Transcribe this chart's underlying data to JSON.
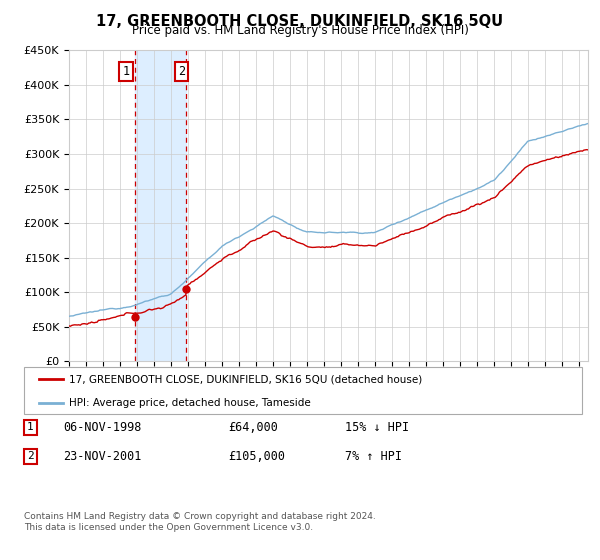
{
  "title": "17, GREENBOOTH CLOSE, DUKINFIELD, SK16 5QU",
  "subtitle": "Price paid vs. HM Land Registry's House Price Index (HPI)",
  "ylim": [
    0,
    450000
  ],
  "xlim_start": 1995.0,
  "xlim_end": 2025.5,
  "yticks": [
    0,
    50000,
    100000,
    150000,
    200000,
    250000,
    300000,
    350000,
    400000,
    450000
  ],
  "ytick_labels": [
    "£0",
    "£50K",
    "£100K",
    "£150K",
    "£200K",
    "£250K",
    "£300K",
    "£350K",
    "£400K",
    "£450K"
  ],
  "xticks": [
    1995,
    1996,
    1997,
    1998,
    1999,
    2000,
    2001,
    2002,
    2003,
    2004,
    2005,
    2006,
    2007,
    2008,
    2009,
    2010,
    2011,
    2012,
    2013,
    2014,
    2015,
    2016,
    2017,
    2018,
    2019,
    2020,
    2021,
    2022,
    2023,
    2024,
    2025
  ],
  "transaction1_x": 1998.85,
  "transaction1_y": 64000,
  "transaction2_x": 2001.9,
  "transaction2_y": 105000,
  "transaction1_label": "06-NOV-1998",
  "transaction1_price": "£64,000",
  "transaction1_hpi": "15% ↓ HPI",
  "transaction2_label": "23-NOV-2001",
  "transaction2_price": "£105,000",
  "transaction2_hpi": "7% ↑ HPI",
  "line1_label": "17, GREENBOOTH CLOSE, DUKINFIELD, SK16 5QU (detached house)",
  "line2_label": "HPI: Average price, detached house, Tameside",
  "red_color": "#cc0000",
  "blue_color": "#7ab0d4",
  "shade_color": "#ddeeff",
  "footer": "Contains HM Land Registry data © Crown copyright and database right 2024.\nThis data is licensed under the Open Government Licence v3.0.",
  "background_color": "#ffffff",
  "grid_color": "#cccccc"
}
